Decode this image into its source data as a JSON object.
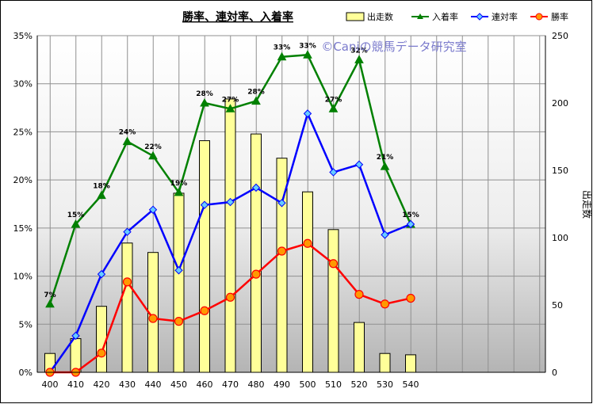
{
  "chart_data": {
    "type": "bar+line",
    "title": "勝率、連対率、入着率",
    "watermark": "©Caniの競馬データ研究室",
    "categories": [
      400,
      410,
      420,
      430,
      440,
      450,
      460,
      470,
      480,
      490,
      500,
      510,
      520,
      530,
      540
    ],
    "x_tick_labels": [
      "400",
      "410",
      "420",
      "430",
      "440",
      "450",
      "460",
      "470",
      "480",
      "490",
      "500",
      "510",
      "520",
      "530",
      "540"
    ],
    "y_left": {
      "ylim": [
        0,
        35
      ],
      "ticks": [
        0,
        5,
        10,
        15,
        20,
        25,
        30,
        35
      ],
      "tick_labels": [
        "0%",
        "5%",
        "10%",
        "15%",
        "20%",
        "25%",
        "30%",
        "35%"
      ]
    },
    "y_right": {
      "label": "出走数",
      "ylim": [
        0,
        250
      ],
      "ticks": [
        0,
        50,
        100,
        150,
        200,
        250
      ],
      "tick_labels": [
        "0",
        "50",
        "100",
        "150",
        "200",
        "250"
      ]
    },
    "grid": true,
    "legend_position": "top",
    "bars": {
      "name": "出走数",
      "axis": "right",
      "color": "#ffff99",
      "edge": "#000000",
      "values": [
        14,
        25,
        49,
        96,
        89,
        133,
        172,
        203,
        177,
        159,
        134,
        106,
        37,
        14,
        13
      ]
    },
    "series": [
      {
        "name": "入着率",
        "axis": "left",
        "color": "#008000",
        "marker": "triangle",
        "values": [
          7.1,
          15.4,
          18.4,
          24.0,
          22.5,
          18.7,
          28.0,
          27.4,
          28.2,
          32.8,
          33.0,
          27.4,
          32.5,
          21.4,
          15.4
        ],
        "labels": [
          "7%",
          "15%",
          "18%",
          "24%",
          "22%",
          "19%",
          "28%",
          "27%",
          "28%",
          "33%",
          "33%",
          "27%",
          "32%",
          "21%",
          "15%"
        ]
      },
      {
        "name": "連対率",
        "axis": "left",
        "color": "#0000ff",
        "marker": "diamond",
        "values": [
          0.0,
          3.8,
          10.2,
          14.6,
          16.9,
          10.6,
          17.4,
          17.7,
          19.2,
          17.6,
          26.9,
          20.8,
          21.6,
          14.3,
          15.4
        ]
      },
      {
        "name": "勝率",
        "axis": "left",
        "color": "#ff0000",
        "marker": "circle",
        "marker_fill": "#ff9900",
        "values": [
          0.0,
          0.0,
          2.0,
          9.4,
          5.6,
          5.3,
          6.4,
          7.8,
          10.2,
          12.6,
          13.4,
          11.3,
          8.1,
          7.1,
          7.7
        ]
      }
    ]
  }
}
